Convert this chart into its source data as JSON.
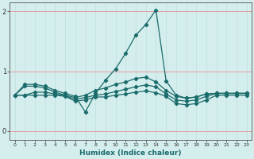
{
  "xlabel": "Humidex (Indice chaleur)",
  "bg_color": "#d4eeed",
  "line_color": "#1a6b6b",
  "grid_color_v": "#c0dede",
  "grid_color_h_red": "#e89090",
  "x": [
    0,
    1,
    2,
    3,
    4,
    5,
    6,
    7,
    8,
    9,
    10,
    11,
    12,
    13,
    14,
    15,
    16,
    17,
    18,
    19,
    20,
    21,
    22,
    23
  ],
  "series": [
    [
      0.6,
      0.78,
      0.78,
      0.75,
      0.68,
      0.63,
      0.58,
      0.32,
      0.63,
      0.85,
      1.04,
      1.3,
      1.6,
      1.78,
      2.02,
      0.84,
      0.6,
      0.55,
      0.57,
      0.62,
      0.63,
      0.63,
      0.63,
      0.63
    ],
    [
      0.6,
      0.75,
      0.75,
      0.72,
      0.65,
      0.6,
      0.56,
      0.6,
      0.68,
      0.72,
      0.78,
      0.82,
      0.88,
      0.9,
      0.82,
      0.68,
      0.58,
      0.55,
      0.57,
      0.62,
      0.63,
      0.63,
      0.63,
      0.63
    ],
    [
      0.6,
      0.6,
      0.65,
      0.65,
      0.62,
      0.59,
      0.53,
      0.56,
      0.6,
      0.62,
      0.66,
      0.7,
      0.74,
      0.77,
      0.74,
      0.62,
      0.52,
      0.5,
      0.52,
      0.58,
      0.63,
      0.63,
      0.63,
      0.63
    ],
    [
      0.6,
      0.6,
      0.6,
      0.6,
      0.6,
      0.58,
      0.5,
      0.52,
      0.57,
      0.57,
      0.6,
      0.62,
      0.65,
      0.67,
      0.64,
      0.58,
      0.46,
      0.44,
      0.46,
      0.52,
      0.6,
      0.6,
      0.6,
      0.6
    ]
  ],
  "ylim": [
    -0.15,
    2.15
  ],
  "yticks": [
    0,
    1,
    2
  ],
  "xlim": [
    -0.5,
    23.5
  ]
}
